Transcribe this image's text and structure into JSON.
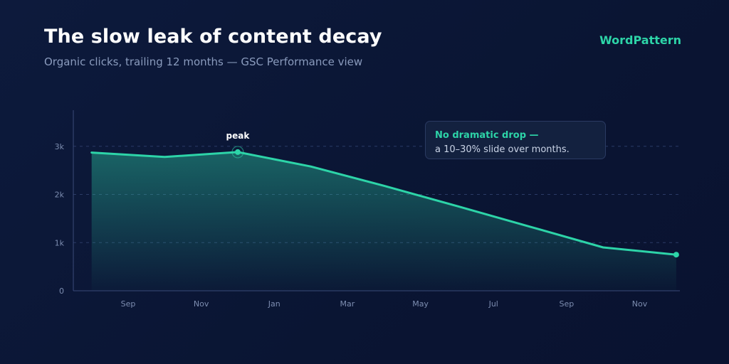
{
  "header": {
    "title": "The slow leak of content decay",
    "subtitle": "Organic clicks, trailing 12 months — GSC Performance view",
    "brand": "WordPattern"
  },
  "callout": {
    "title": "No dramatic drop —",
    "body": "a 10–30% slide over months."
  },
  "colors": {
    "accent": "#2dd4a8",
    "axis": "#3a4a78",
    "tick_text": "#7d8db0",
    "grid": "#2b3b66"
  },
  "chart_data": {
    "type": "area",
    "x_tick_labels": [
      "Sep",
      "Nov",
      "Jan",
      "Mar",
      "May",
      "Jul",
      "Sep",
      "Nov"
    ],
    "x_tick_positions": [
      1,
      3,
      5,
      7,
      9,
      11,
      13,
      15
    ],
    "y_ticks": [
      0,
      1000,
      2000,
      3000
    ],
    "y_tick_labels": [
      "0",
      "1k",
      "2k",
      "3k"
    ],
    "ylim": [
      0,
      3750
    ],
    "xlim": [
      -0.5,
      16.1
    ],
    "series": [
      {
        "x": [
          0,
          2,
          4,
          6,
          8,
          10,
          12,
          14,
          16
        ],
        "values": [
          2870,
          2780,
          2880,
          2580,
          2180,
          1760,
          1330,
          900,
          750
        ]
      }
    ],
    "annotations": [
      {
        "label": "peak",
        "x": 4,
        "y": 2880
      }
    ],
    "grid": "horizontal dashed",
    "legend": "none"
  }
}
